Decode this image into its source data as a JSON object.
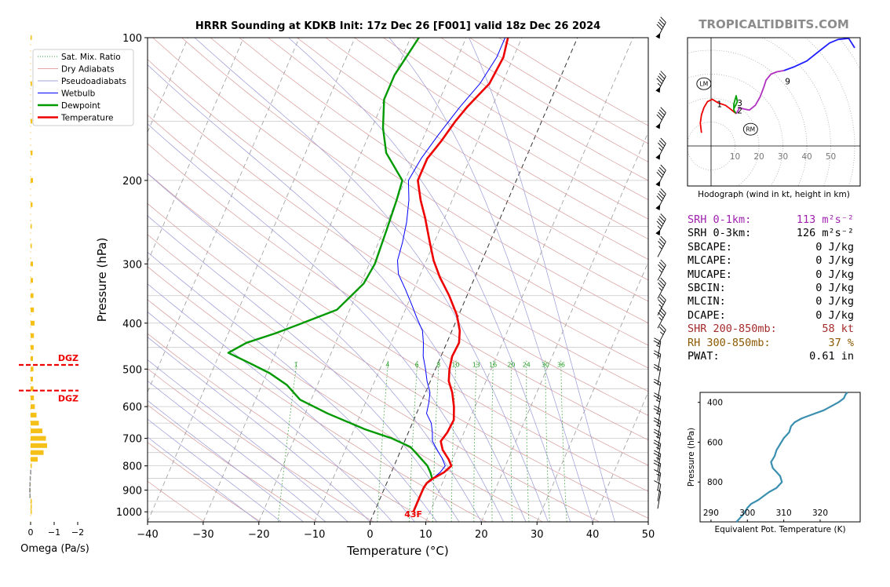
{
  "title": "HRRR Sounding at KDKB Init: 17z Dec 26 [F001] valid 18z Dec 26 2024",
  "watermark": "TROPICALTIDBITS.COM",
  "chart_data": [
    {
      "type": "line",
      "name": "skewt",
      "xlabel": "Temperature (°C)",
      "ylabel": "Pressure (hPa)",
      "xlim": [
        -40,
        50
      ],
      "ylim": [
        1050,
        100
      ],
      "yscale": "log",
      "skew_deg_per_decade": 36.5,
      "xticks": [
        "−40",
        "−30",
        "−20",
        "−10",
        "0",
        "10",
        "20",
        "30",
        "40",
        "50"
      ],
      "xtick_values": [
        -40,
        -30,
        -20,
        -10,
        0,
        10,
        20,
        30,
        40,
        50
      ],
      "yticks": [
        "100",
        "200",
        "300",
        "400",
        "500",
        "600",
        "700",
        "800",
        "900",
        "1000"
      ],
      "ytick_values": [
        100,
        200,
        300,
        400,
        500,
        600,
        700,
        800,
        900,
        1000
      ],
      "legend": [
        {
          "label": "Sat. Mix. Ratio",
          "color": "#2ca02c",
          "style": "dotted"
        },
        {
          "label": "Dry Adiabats",
          "color": "#d68a8a",
          "style": "solid-thin"
        },
        {
          "label": "Pseudoadiabats",
          "color": "#8888cc",
          "style": "solid-thin"
        },
        {
          "label": "Wetbulb",
          "color": "#0000ff",
          "style": "solid"
        },
        {
          "label": "Dewpoint",
          "color": "#009900",
          "style": "solid-thick"
        },
        {
          "label": "Temperature",
          "color": "#ee0000",
          "style": "solid-thick"
        }
      ],
      "legend_position": "top-left",
      "mixing_ratio_labels": [
        "1",
        "4",
        "6",
        "8",
        "10",
        "13",
        "16",
        "20",
        "24",
        "30",
        "36"
      ],
      "mixing_ratio_values": [
        1,
        4,
        6,
        8,
        10,
        13,
        16,
        20,
        24,
        30,
        36
      ],
      "surface_label": "43F",
      "series": [
        {
          "name": "Temperature",
          "color": "#ee0000",
          "p": [
            1000,
            960,
            920,
            890,
            870,
            850,
            825,
            800,
            775,
            740,
            710,
            680,
            640,
            600,
            560,
            530,
            500,
            470,
            440,
            415,
            385,
            350,
            320,
            295,
            270,
            240,
            220,
            200,
            180,
            165,
            150,
            140,
            125,
            110,
            100
          ],
          "t": [
            7,
            7,
            7,
            7,
            7.2,
            8,
            9.5,
            10.3,
            9.3,
            7.5,
            6.5,
            7,
            7.2,
            6.2,
            4.8,
            3.3,
            2.5,
            2,
            2.2,
            1.4,
            -0.3,
            -3.2,
            -6.3,
            -8.7,
            -10.8,
            -13.5,
            -15.7,
            -17.7,
            -17.7,
            -16.5,
            -15.5,
            -14.5,
            -12.3,
            -11.8,
            -12.5
          ]
        },
        {
          "name": "Dewpoint",
          "color": "#009900",
          "p": [
            1000,
            960,
            920,
            890,
            870,
            850,
            825,
            800,
            760,
            730,
            700,
            670,
            620,
            580,
            540,
            510,
            485,
            462,
            440,
            420,
            400,
            375,
            330,
            300,
            255,
            220,
            200,
            175,
            155,
            135,
            120,
            100
          ],
          "t": [
            7,
            7,
            7,
            7,
            7.2,
            7.8,
            7,
            6,
            3.5,
            1.5,
            -2.5,
            -8,
            -16,
            -22,
            -25.5,
            -29.5,
            -34,
            -38.5,
            -36,
            -31.5,
            -27.5,
            -22.3,
            -19.5,
            -19,
            -19.5,
            -20,
            -20.5,
            -25.5,
            -28,
            -30,
            -30,
            -28.5
          ]
        },
        {
          "name": "Wetbulb",
          "color": "#0000ff",
          "p": [
            1000,
            960,
            920,
            890,
            870,
            850,
            825,
            800,
            770,
            740,
            710,
            680,
            650,
            620,
            590,
            560,
            530,
            500,
            470,
            440,
            415,
            390,
            365,
            340,
            315,
            295,
            270,
            245,
            220,
            200,
            180,
            160,
            140,
            125,
            110,
            100
          ],
          "t": [
            7,
            7,
            7,
            7,
            7.2,
            7.9,
            8.8,
            9.2,
            8,
            6.5,
            5,
            4.3,
            3.4,
            1.8,
            1.4,
            0.8,
            -0.6,
            -1.8,
            -3.2,
            -4.2,
            -5.3,
            -7.3,
            -9.3,
            -11.5,
            -14,
            -15.2,
            -15.7,
            -16.5,
            -17.8,
            -19.4,
            -18.8,
            -17.5,
            -15.8,
            -14,
            -13,
            -13
          ]
        }
      ]
    },
    {
      "type": "bar",
      "name": "omega",
      "xlabel": "Omega (Pa/s)",
      "xticks": [
        "0",
        "−1",
        "−2"
      ],
      "xtick_values": [
        0,
        -1,
        -2
      ],
      "dgz_labels": [
        "DGZ",
        "DGZ"
      ],
      "dgz_pressures": [
        490,
        555
      ],
      "p": [
        1000,
        975,
        950,
        925,
        900,
        875,
        850,
        825,
        800,
        775,
        750,
        725,
        700,
        675,
        650,
        625,
        600,
        575,
        550,
        525,
        500,
        475,
        450,
        425,
        400,
        375,
        350,
        325,
        300,
        275,
        250,
        225,
        200,
        175,
        150,
        125,
        100
      ],
      "omega": [
        -0.03,
        -0.02,
        -0.02,
        0.05,
        0.06,
        0.05,
        0.04,
        0.02,
        -0.05,
        -0.3,
        -0.55,
        -0.7,
        -0.65,
        -0.5,
        -0.35,
        -0.25,
        -0.18,
        -0.14,
        -0.12,
        -0.1,
        -0.12,
        -0.1,
        -0.13,
        -0.14,
        -0.17,
        -0.14,
        -0.12,
        -0.1,
        -0.1,
        -0.05,
        -0.05,
        -0.08,
        -0.1,
        -0.08,
        -0.07,
        -0.06,
        -0.05
      ]
    },
    {
      "type": "line",
      "name": "hodograph",
      "caption": "Hodograph (wind in kt, height in km)",
      "ring_labels": [
        "10",
        "20",
        "30",
        "40",
        "50"
      ],
      "ring_values": [
        10,
        20,
        30,
        40,
        50
      ],
      "markers": [
        {
          "label": "LM",
          "u": -3,
          "v": 26
        },
        {
          "label": "RM",
          "u": 16.5,
          "v": 7
        }
      ],
      "height_labels": [
        {
          "label": "1",
          "u": 3.5,
          "v": 17.5
        },
        {
          "label": "2",
          "u": 12,
          "v": 15
        },
        {
          "label": "3",
          "u": 12,
          "v": 18
        },
        {
          "label": "9",
          "u": 32,
          "v": 27
        }
      ],
      "segments": [
        {
          "color": "#ee0000",
          "u": [
            -4,
            -4.5,
            -4,
            -3,
            -1.5,
            0.5,
            3,
            6,
            8,
            10.5
          ],
          "v": [
            5.5,
            9.5,
            13,
            16,
            18.5,
            19.5,
            18,
            17,
            15.5,
            13.5
          ]
        },
        {
          "color": "#00a000",
          "u": [
            10.5,
            9.5,
            9.5,
            10.5,
            11,
            10,
            9.5
          ],
          "v": [
            13.5,
            15,
            17.5,
            21,
            18.5,
            16.5,
            15.5
          ]
        },
        {
          "color": "#b030c0",
          "u": [
            10.5,
            12,
            13.5,
            16,
            18.5,
            20.5,
            22,
            23,
            25,
            27.5,
            30.5
          ],
          "v": [
            13.5,
            16,
            15.5,
            15,
            17,
            20.5,
            24.5,
            27.5,
            30,
            31,
            31.5
          ]
        },
        {
          "color": "#2020ff",
          "u": [
            30.5,
            34.5,
            40,
            45,
            49.5,
            53,
            57.5,
            60
          ],
          "v": [
            31.5,
            33,
            35.5,
            39.5,
            43,
            44.5,
            45,
            41
          ]
        }
      ]
    },
    {
      "type": "line",
      "name": "theta-e",
      "xlabel": "Equivalent Pot. Temperature (K)",
      "ylabel": "Pressure (hPa)",
      "xlim": [
        287,
        331
      ],
      "ylim": [
        1000,
        350
      ],
      "xticks": [
        "290",
        "300",
        "310",
        "320"
      ],
      "xtick_values": [
        290,
        300,
        310,
        320
      ],
      "yticks": [
        "400",
        "600",
        "800"
      ],
      "ytick_values": [
        400,
        600,
        800
      ],
      "series": [
        {
          "name": "",
          "color": "#3a8fb0",
          "p": [
            1000,
            960,
            930,
            910,
            890,
            870,
            850,
            830,
            800,
            770,
            750,
            730,
            700,
            670,
            640,
            610,
            580,
            550,
            520,
            500,
            480,
            460,
            440,
            420,
            400,
            380,
            360,
            350
          ],
          "te": [
            297,
            299,
            300,
            301,
            303,
            304.5,
            306,
            308,
            309.5,
            309,
            308,
            307,
            306.5,
            307.5,
            308,
            309,
            310,
            311.5,
            312,
            313,
            315,
            318,
            321,
            323,
            325,
            326.5,
            327,
            327.5
          ]
        }
      ]
    }
  ],
  "barbs": {
    "p": [
      100,
      130,
      155,
      180,
      205,
      230,
      260,
      290,
      325,
      355,
      385,
      410,
      445,
      475,
      505,
      540,
      580,
      620,
      660,
      700,
      740,
      780,
      820,
      860,
      900,
      950,
      985
    ],
    "kt": [
      40,
      45,
      40,
      35,
      40,
      40,
      45,
      35,
      35,
      35,
      35,
      35,
      25,
      25,
      20,
      20,
      20,
      25,
      25,
      25,
      25,
      25,
      25,
      20,
      15,
      10,
      5
    ]
  },
  "indices": [
    {
      "label": "SRH 0-1km:",
      "value": "113 m²s⁻²",
      "color": "#a020b0"
    },
    {
      "label": "SRH 0-3km:",
      "value": "126 m²s⁻²",
      "color": "#000000"
    },
    {
      "label": "SBCAPE:",
      "value": "0 J/kg",
      "color": "#000000"
    },
    {
      "label": "MLCAPE:",
      "value": "0 J/kg",
      "color": "#000000"
    },
    {
      "label": "MUCAPE:",
      "value": "0 J/kg",
      "color": "#000000"
    },
    {
      "label": "SBCIN:",
      "value": "0 J/kg",
      "color": "#000000"
    },
    {
      "label": "MLCIN:",
      "value": "0 J/kg",
      "color": "#000000"
    },
    {
      "label": "DCAPE:",
      "value": "0 J/kg",
      "color": "#000000"
    },
    {
      "label": "SHR 200-850mb:",
      "value": "58 kt",
      "color": "#a52a2a"
    },
    {
      "label": "RH 300-850mb:",
      "value": "37 %",
      "color": "#8b5a00"
    },
    {
      "label": "PWAT:",
      "value": "0.61 in",
      "color": "#000000"
    }
  ]
}
